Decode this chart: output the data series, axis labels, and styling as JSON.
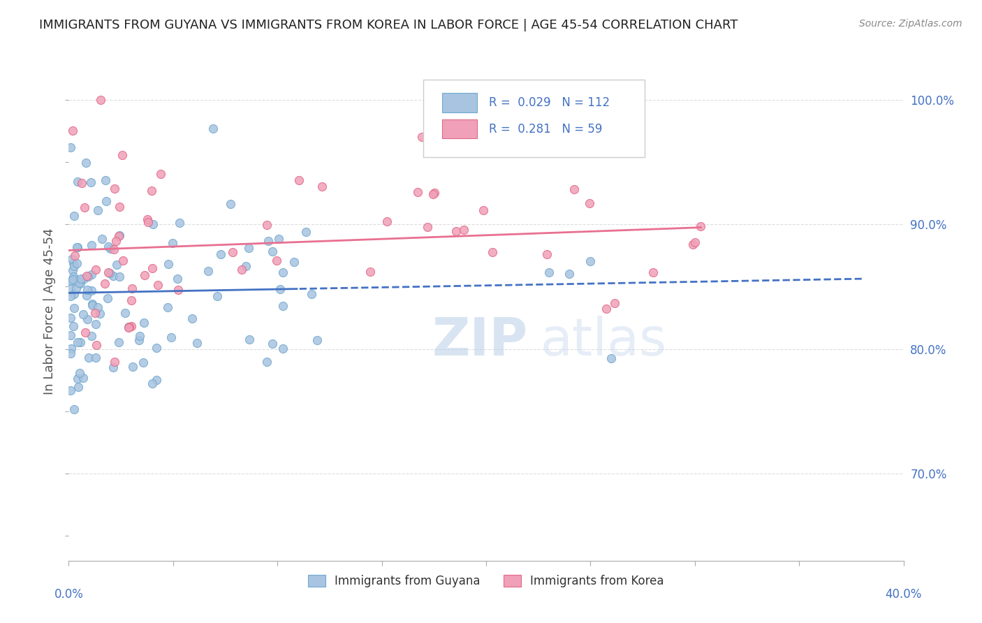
{
  "title": "IMMIGRANTS FROM GUYANA VS IMMIGRANTS FROM KOREA IN LABOR FORCE | AGE 45-54 CORRELATION CHART",
  "source": "Source: ZipAtlas.com",
  "ylabel": "In Labor Force | Age 45-54",
  "right_yticks": [
    "100.0%",
    "90.0%",
    "80.0%",
    "70.0%"
  ],
  "right_ytick_vals": [
    1.0,
    0.9,
    0.8,
    0.7
  ],
  "xlim": [
    0.0,
    0.4
  ],
  "ylim": [
    0.63,
    1.03
  ],
  "guyana_color": "#a8c4e0",
  "guyana_edge": "#6fa8d0",
  "korea_color": "#f0a0b8",
  "korea_edge": "#e06888",
  "guyana_R": 0.029,
  "guyana_N": 112,
  "korea_R": 0.281,
  "korea_N": 59,
  "trend_blue": "#4472c4",
  "trend_pink": "#e87090",
  "legend_R_color": "#4472c4",
  "watermark_zip": "ZIP",
  "watermark_atlas": "atlas",
  "bg_color": "#ffffff",
  "grid_color": "#dddddd",
  "title_color": "#222222",
  "axis_label_color": "#4472c4"
}
